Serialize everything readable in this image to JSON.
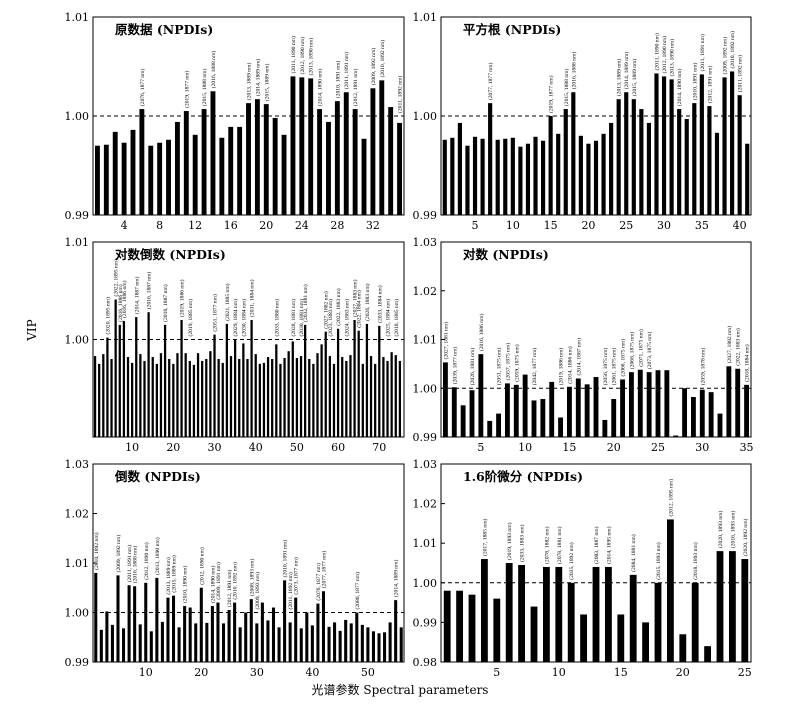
{
  "figure": {
    "ylabel": "VIP",
    "xlabel": "光谱参数 Spectral parameters"
  },
  "chart_data": [
    {
      "type": "bar",
      "title": "原数据 (NPDIs)",
      "ylim": [
        0.99,
        1.01
      ],
      "yticks": [
        "0.99",
        "1.00",
        "1.01"
      ],
      "xlim": [
        0.5,
        35.5
      ],
      "xticks": [
        4,
        8,
        12,
        16,
        20,
        24,
        28,
        32
      ],
      "baseline": 1.0,
      "x": [
        1,
        2,
        3,
        4,
        5,
        6,
        7,
        8,
        9,
        10,
        11,
        12,
        13,
        14,
        15,
        16,
        17,
        18,
        19,
        20,
        21,
        22,
        23,
        24,
        25,
        26,
        27,
        28,
        29,
        30,
        31,
        32,
        33,
        34,
        35
      ],
      "values": [
        0.997,
        0.9971,
        0.9984,
        0.9973,
        0.9986,
        1.0007,
        0.997,
        0.9973,
        0.9976,
        0.9994,
        1.0005,
        0.9981,
        1.0007,
        1.0025,
        0.9978,
        0.9989,
        0.9989,
        1.0013,
        1.0017,
        1.0012,
        0.9998,
        0.9981,
        1.004,
        1.0039,
        1.0038,
        1.0007,
        0.9994,
        1.0015,
        1.0024,
        1.0007,
        0.9977,
        1.0028,
        1.0036,
        1.0009,
        0.9993
      ],
      "labels": [
        {
          "x": 6,
          "text": "(2076, 1877 nm)"
        },
        {
          "x": 11,
          "text": "(2019, 1877 nm)"
        },
        {
          "x": 13,
          "text": "(2015, 1888 nm)"
        },
        {
          "x": 14,
          "text": "(2016, 1888 nm)"
        },
        {
          "x": 18,
          "text": "(2013, 1889 nm)"
        },
        {
          "x": 19,
          "text": "(2014, 1889 nm)"
        },
        {
          "x": 20,
          "text": "(2015, 1889 nm)"
        },
        {
          "x": 23,
          "text": "(2011, 1890 nm)"
        },
        {
          "x": 24,
          "text": "(2012, 1890 nm)"
        },
        {
          "x": 25,
          "text": "(2013, 1890 nm)"
        },
        {
          "x": 26,
          "text": "(2014, 1890 nm)"
        },
        {
          "x": 28,
          "text": "(2010, 1891 nm)"
        },
        {
          "x": 29,
          "text": "(2011, 1891 nm)"
        },
        {
          "x": 30,
          "text": "(2012, 1891 nm)"
        },
        {
          "x": 32,
          "text": "(2009, 1892 nm)"
        },
        {
          "x": 33,
          "text": "(2010, 1892 nm)"
        },
        {
          "x": 35,
          "text": "(2011, 1892 nm)"
        }
      ]
    },
    {
      "type": "bar",
      "title": "平方根 (NPDIs)",
      "ylim": [
        0.99,
        1.01
      ],
      "yticks": [
        "0.99",
        "1.00",
        "1.01"
      ],
      "xlim": [
        0.5,
        41.5
      ],
      "xticks": [
        5,
        10,
        15,
        20,
        25,
        30,
        35,
        40
      ],
      "baseline": 1.0,
      "x": [
        1,
        2,
        3,
        4,
        5,
        6,
        7,
        8,
        9,
        10,
        11,
        12,
        13,
        14,
        15,
        16,
        17,
        18,
        19,
        20,
        21,
        22,
        23,
        24,
        25,
        26,
        27,
        28,
        29,
        30,
        31,
        32,
        33,
        34,
        35,
        36,
        37,
        38,
        39,
        40,
        41
      ],
      "values": [
        0.9976,
        0.9978,
        0.9993,
        0.997,
        0.9979,
        0.9977,
        1.0013,
        0.9976,
        0.9977,
        0.9978,
        0.9969,
        0.9972,
        0.9979,
        0.9975,
        1.0,
        0.9982,
        1.0007,
        1.0024,
        0.998,
        0.9972,
        0.9975,
        0.9982,
        0.9993,
        1.0017,
        1.0024,
        1.0017,
        1.0007,
        0.9993,
        1.0043,
        1.004,
        1.0037,
        1.0007,
        0.9997,
        1.0013,
        1.0042,
        1.001,
        0.9983,
        1.0039,
        1.0045,
        1.0021,
        0.9972
      ],
      "labels": [
        {
          "x": 7,
          "text": "(2077, 1877 nm)"
        },
        {
          "x": 15,
          "text": "(2019, 1877 nm)"
        },
        {
          "x": 17,
          "text": "(2015, 1888 nm)"
        },
        {
          "x": 18,
          "text": "(2016, 1888 nm)"
        },
        {
          "x": 24,
          "text": "(2013, 1889 nm)"
        },
        {
          "x": 25,
          "text": "(2014, 1889 nm)"
        },
        {
          "x": 26,
          "text": "(2015, 1889 nm)"
        },
        {
          "x": 29,
          "text": "(2011, 1890 nm)"
        },
        {
          "x": 30,
          "text": "(2012, 1890 nm)"
        },
        {
          "x": 31,
          "text": "(2013, 1890 nm)"
        },
        {
          "x": 32,
          "text": "(2014, 1890 nm)"
        },
        {
          "x": 34,
          "text": "(2010, 1891 nm)"
        },
        {
          "x": 35,
          "text": "(2011, 1891 nm)"
        },
        {
          "x": 36,
          "text": "(2012, 1891 nm)"
        },
        {
          "x": 38,
          "text": "(2009, 1892 nm)"
        },
        {
          "x": 39,
          "text": "(2010, 1892 nm)"
        },
        {
          "x": 40,
          "text": "(2011, 1892 nm)"
        }
      ]
    },
    {
      "type": "bar",
      "title": "对数倒数 (NPDIs)",
      "ylim": [
        0.99,
        1.01
      ],
      "yticks": [
        "1.00",
        "1.01"
      ],
      "xlim": [
        0.5,
        76
      ],
      "xticks": [
        10,
        20,
        30,
        40,
        50,
        60,
        70
      ],
      "baseline": 1.0,
      "x": [
        1,
        2,
        3,
        4,
        5,
        6,
        7,
        8,
        9,
        10,
        11,
        12,
        13,
        14,
        15,
        16,
        17,
        18,
        19,
        20,
        21,
        22,
        23,
        24,
        25,
        26,
        27,
        28,
        29,
        30,
        31,
        32,
        33,
        34,
        35,
        36,
        37,
        38,
        39,
        40,
        41,
        42,
        43,
        44,
        45,
        46,
        47,
        48,
        49,
        50,
        51,
        52,
        53,
        54,
        55,
        56,
        57,
        58,
        59,
        60,
        61,
        62,
        63,
        64,
        65,
        66,
        67,
        68,
        69,
        70,
        71,
        72,
        73,
        74,
        75
      ],
      "values": [
        0.9983,
        0.9975,
        0.9985,
        1.0002,
        0.998,
        1.0041,
        1.0015,
        1.0019,
        0.9982,
        0.9976,
        1.0023,
        0.9985,
        0.9978,
        1.0028,
        0.9982,
        0.9975,
        0.9986,
        1.0015,
        0.998,
        0.9975,
        0.9986,
        1.002,
        0.9986,
        0.9978,
        0.9974,
        0.9986,
        0.9978,
        0.998,
        0.9988,
        1.0005,
        0.998,
        0.9976,
        1.0016,
        0.9983,
        1.0,
        0.998,
        0.9996,
        0.998,
        1.002,
        0.9985,
        0.9975,
        0.9976,
        0.9982,
        0.998,
        0.9995,
        0.9975,
        0.9981,
        0.9988,
        0.9998,
        0.9981,
        0.9983,
        1.0015,
        0.998,
        0.9975,
        0.9986,
        0.9995,
        1.0008,
        0.9983,
        0.9975,
        1.0011,
        0.9982,
        0.9978,
        0.9984,
        1.002,
        1.0009,
        0.9975,
        1.0016,
        0.9983,
        0.9975,
        1.0014,
        0.9982,
        0.9978,
        0.9987,
        0.9984,
        0.9978
      ],
      "labels": [
        {
          "x": 4,
          "text": "(2020, 1895 nm)"
        },
        {
          "x": 6,
          "text": "(2022, 1895 nm)"
        },
        {
          "x": 7,
          "text": "(2016, 1886 nm)"
        },
        {
          "x": 8,
          "text": "(2016, 1886 nm)"
        },
        {
          "x": 11,
          "text": "(2014, 1887 nm)"
        },
        {
          "x": 14,
          "text": "(2016, 1887 nm)"
        },
        {
          "x": 18,
          "text": "(2018, 1887 nm)"
        },
        {
          "x": 22,
          "text": "(2019, 1886 nm)"
        },
        {
          "x": 24,
          "text": "(2019, 1885 nm)"
        },
        {
          "x": 30,
          "text": "(2051, 1877 nm)"
        },
        {
          "x": 33,
          "text": "(2021, 1885 nm)"
        },
        {
          "x": 35,
          "text": "(2029, 1884 nm)"
        },
        {
          "x": 37,
          "text": "(2030, 1884 nm)"
        },
        {
          "x": 39,
          "text": "(2031, 1884 nm)"
        },
        {
          "x": 45,
          "text": "(2033, 1880 nm)"
        },
        {
          "x": 49,
          "text": "(2028, 1881 nm)"
        },
        {
          "x": 51,
          "text": "(2030, 1881 nm)"
        },
        {
          "x": 52,
          "text": "(2032, 1881 nm)"
        },
        {
          "x": 57,
          "text": "(2027, 1882 nm)"
        },
        {
          "x": 58,
          "text": "(2023, 1883 nm)"
        },
        {
          "x": 60,
          "text": "(2022, 1883 nm)"
        },
        {
          "x": 62,
          "text": "(2024, 1883 nm)"
        },
        {
          "x": 64,
          "text": "(2027, 1883 nm)"
        },
        {
          "x": 65,
          "text": "(2022, 1884 nm)"
        },
        {
          "x": 67,
          "text": "(2026, 1883 nm)"
        },
        {
          "x": 70,
          "text": "(2033, 1884 nm)"
        },
        {
          "x": 72,
          "text": "(2025, 1884 nm)"
        },
        {
          "x": 74,
          "text": "(2018, 1885 nm)"
        }
      ]
    },
    {
      "type": "bar",
      "title": "对数 (NPDIs)",
      "ylim": [
        0.99,
        1.03
      ],
      "yticks": [
        "0.99",
        "1.00",
        "1.01",
        "1.02",
        "1.03"
      ],
      "xlim": [
        0.5,
        35.5
      ],
      "xticks": [
        5,
        10,
        15,
        20,
        25,
        30,
        35
      ],
      "baseline": 1.0,
      "x": [
        1,
        2,
        3,
        4,
        5,
        6,
        7,
        8,
        9,
        10,
        11,
        12,
        13,
        14,
        15,
        16,
        17,
        18,
        19,
        20,
        21,
        22,
        23,
        24,
        25,
        26,
        27,
        28,
        29,
        30,
        31,
        32,
        33,
        34,
        35
      ],
      "values": [
        1.0053,
        1.0002,
        0.9965,
        0.9996,
        1.007,
        0.9933,
        0.9948,
        1.001,
        1.0007,
        1.0028,
        0.9975,
        0.9978,
        1.0013,
        0.994,
        1.0003,
        1.002,
        1.0008,
        1.0023,
        0.9935,
        0.9978,
        1.0018,
        1.0033,
        1.0038,
        1.0033,
        1.0037,
        1.0037,
        0.9903,
        1.0,
        0.9982,
        0.9997,
        0.9992,
        0.9948,
        1.0045,
        1.004,
        1.0007
      ],
      "labels": [
        {
          "x": 1,
          "text": "(2027, 1881 nm)"
        },
        {
          "x": 2,
          "text": "(2039, 1877 nm)"
        },
        {
          "x": 4,
          "text": "(2026, 1881 nm)"
        },
        {
          "x": 5,
          "text": "(2016, 1886 nm)"
        },
        {
          "x": 7,
          "text": "(2051, 1875 nm)"
        },
        {
          "x": 8,
          "text": "(2057, 1875 nm)"
        },
        {
          "x": 9,
          "text": "(2059, 1875 nm)"
        },
        {
          "x": 11,
          "text": "(2042, 1877 nm)"
        },
        {
          "x": 14,
          "text": "(2019, 1886 nm)"
        },
        {
          "x": 15,
          "text": "(2014, 1886 nm)"
        },
        {
          "x": 16,
          "text": "(2014, 1887 nm)"
        },
        {
          "x": 19,
          "text": "(2056, 1875 nm)"
        },
        {
          "x": 20,
          "text": "(2061, 1875 nm)"
        },
        {
          "x": 21,
          "text": "(2068, 1875 nm)"
        },
        {
          "x": 22,
          "text": "(2068, 1875 nm)"
        },
        {
          "x": 23,
          "text": "(2071, 1875 nm)"
        },
        {
          "x": 24,
          "text": "(2073, 1875 nm)"
        },
        {
          "x": 30,
          "text": "(2059, 1878 nm)"
        },
        {
          "x": 33,
          "text": "(2027, 1882 nm)"
        },
        {
          "x": 34,
          "text": "(2022, 1883 nm)"
        },
        {
          "x": 35,
          "text": "(2018, 1884 nm)"
        }
      ]
    },
    {
      "type": "bar",
      "title": "倒数 (NPDIs)",
      "ylim": [
        0.99,
        1.03
      ],
      "yticks": [
        "0.99",
        "1.00",
        "1.01",
        "1.02",
        "1.03"
      ],
      "xlim": [
        0.5,
        56.5
      ],
      "xticks": [
        10,
        20,
        30,
        40,
        50
      ],
      "baseline": 1.0,
      "x": [
        1,
        2,
        3,
        4,
        5,
        6,
        7,
        8,
        9,
        10,
        11,
        12,
        13,
        14,
        15,
        16,
        17,
        18,
        19,
        20,
        21,
        22,
        23,
        24,
        25,
        26,
        27,
        28,
        29,
        30,
        31,
        32,
        33,
        34,
        35,
        36,
        37,
        38,
        39,
        40,
        41,
        42,
        43,
        44,
        45,
        46,
        47,
        48,
        49,
        50,
        51,
        52,
        53,
        54,
        55,
        56
      ],
      "values": [
        1.008,
        0.9965,
        1.0002,
        0.9975,
        1.0075,
        0.9968,
        1.0055,
        1.0053,
        0.9976,
        1.006,
        0.9962,
        1.007,
        0.9981,
        1.003,
        1.0034,
        0.997,
        1.0013,
        1.001,
        0.9978,
        1.005,
        0.9979,
        1.0013,
        1.002,
        0.9978,
        1.0005,
        1.002,
        0.997,
        1.0,
        1.0027,
        0.9978,
        1.002,
        0.9984,
        1.001,
        0.997,
        1.0065,
        0.998,
        1.003,
        0.9968,
        1.0,
        0.9974,
        1.0018,
        1.0043,
        0.9971,
        0.998,
        0.9963,
        0.9985,
        0.9978,
        1.0,
        0.9975,
        0.997,
        0.9962,
        0.9958,
        0.996,
        0.998,
        1.0025,
        0.997
      ],
      "labels": [
        {
          "x": 1,
          "text": "(2010, 1892 nm)"
        },
        {
          "x": 5,
          "text": "(2009, 1892 nm)"
        },
        {
          "x": 7,
          "text": "(2011, 1891 nm)"
        },
        {
          "x": 8,
          "text": "(2016, 1888 nm)"
        },
        {
          "x": 10,
          "text": "(2012, 1890 nm)"
        },
        {
          "x": 12,
          "text": "(2013, 1890 nm)"
        },
        {
          "x": 14,
          "text": "(2013, 1889 nm)"
        },
        {
          "x": 15,
          "text": "(2015, 1889 nm)"
        },
        {
          "x": 17,
          "text": "(2010, 1890 nm)"
        },
        {
          "x": 20,
          "text": "(2012, 1890 nm)"
        },
        {
          "x": 22,
          "text": "(2014, 1890 nm)"
        },
        {
          "x": 23,
          "text": "(2009, 1891 nm)"
        },
        {
          "x": 25,
          "text": "(2012, 1891 nm)"
        },
        {
          "x": 26,
          "text": "(2010, 1892 nm)"
        },
        {
          "x": 29,
          "text": "(2008, 1893 nm)"
        },
        {
          "x": 30,
          "text": "(2009, 1893 nm)"
        },
        {
          "x": 35,
          "text": "(2010, 1891 nm)"
        },
        {
          "x": 36,
          "text": "(2011, 1892 nm)"
        },
        {
          "x": 37,
          "text": "(2073, 1877 nm)"
        },
        {
          "x": 41,
          "text": "(2076, 1877 nm)"
        },
        {
          "x": 42,
          "text": "(2077, 1877 nm)"
        },
        {
          "x": 48,
          "text": "(2080, 1877 nm)"
        },
        {
          "x": 55,
          "text": "(2014, 1889 nm)"
        }
      ]
    },
    {
      "type": "bar",
      "title": "1.6阶微分 (NPDIs)",
      "ylim": [
        0.98,
        1.03
      ],
      "yticks": [
        "0.98",
        "0.99",
        "1.00",
        "1.01",
        "1.02",
        "1.03"
      ],
      "xlim": [
        0.5,
        25.5
      ],
      "xticks": [
        5,
        10,
        15,
        20,
        25
      ],
      "baseline": 1.0,
      "x": [
        1,
        2,
        3,
        4,
        5,
        6,
        7,
        8,
        9,
        10,
        11,
        12,
        13,
        14,
        15,
        16,
        17,
        18,
        19,
        20,
        21,
        22,
        23,
        24,
        25
      ],
      "values": [
        0.998,
        0.998,
        0.997,
        1.006,
        0.996,
        1.005,
        1.0045,
        0.994,
        1.004,
        1.004,
        1.0,
        0.992,
        1.004,
        1.004,
        0.992,
        1.002,
        0.99,
        1.0,
        1.016,
        0.987,
        1.0,
        0.984,
        1.008,
        1.008,
        1.006
      ],
      "labels": [
        {
          "x": 4,
          "text": "(2017, 1885 nm)"
        },
        {
          "x": 6,
          "text": "(2019, 1893 nm)"
        },
        {
          "x": 7,
          "text": "(2033, 1883 nm)"
        },
        {
          "x": 9,
          "text": "(2078, 1882 nm)"
        },
        {
          "x": 10,
          "text": "(2078, 1881 nm)"
        },
        {
          "x": 11,
          "text": "(2035, 1892 nm)"
        },
        {
          "x": 13,
          "text": "(2083, 1887 nm)"
        },
        {
          "x": 14,
          "text": "(2014, 1895 nm)"
        },
        {
          "x": 16,
          "text": "(2084, 1881 nm)"
        },
        {
          "x": 18,
          "text": "(2015, 1893 nm)"
        },
        {
          "x": 19,
          "text": "(2012, 1895 nm)"
        },
        {
          "x": 21,
          "text": "(2018, 1893 nm)"
        },
        {
          "x": 23,
          "text": "(2020, 1893 nm)"
        },
        {
          "x": 24,
          "text": "(2016, 1893 nm)"
        },
        {
          "x": 25,
          "text": "(2020, 1892 nm)"
        }
      ]
    }
  ]
}
